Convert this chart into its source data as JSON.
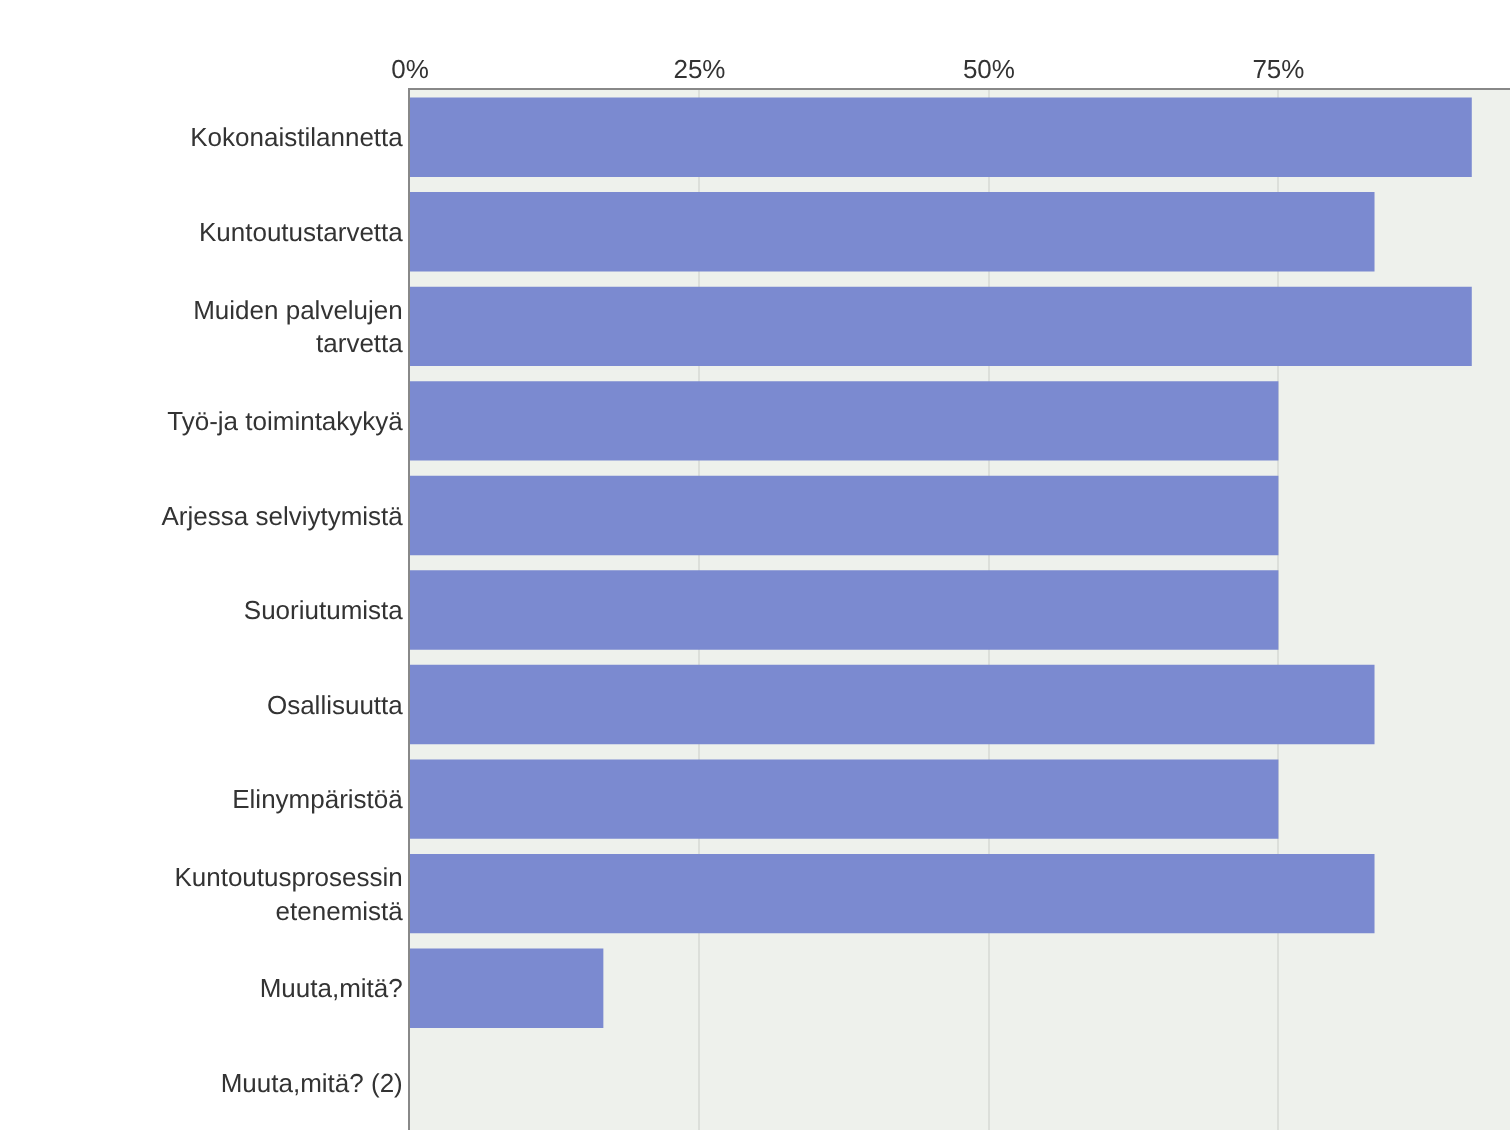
{
  "chart_data": {
    "type": "bar",
    "orientation": "horizontal",
    "categories": [
      "Kokonaistilannetta",
      "Kuntoutustarvetta",
      "Muiden palvelujen tarvetta",
      "Työ-ja toimintakykyä",
      "Arjessa selviytymistä",
      "Suoriutumista",
      "Osallisuutta",
      "Elinympäristöä",
      "Kuntoutusprosessin etenemistä",
      "Muuta,mitä?",
      "Muuta,mitä? (2)"
    ],
    "values": [
      91.7,
      83.3,
      91.7,
      75,
      75,
      75,
      83.3,
      75,
      83.3,
      16.7,
      0
    ],
    "color": "#7b8ad0",
    "xlim": [
      0,
      95
    ],
    "xticks": [
      {
        "value": 0,
        "label": "0%"
      },
      {
        "value": 25,
        "label": "25%"
      },
      {
        "value": 50,
        "label": "50%"
      },
      {
        "value": 75,
        "label": "75%"
      }
    ],
    "grid": "x",
    "legend": false
  }
}
